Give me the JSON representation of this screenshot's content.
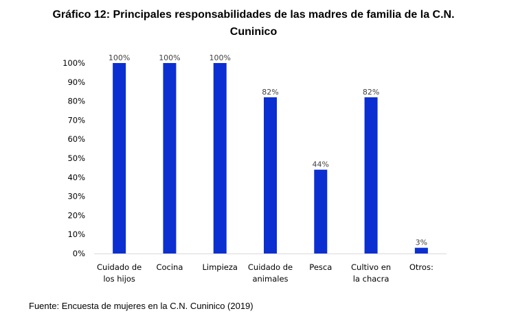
{
  "title_lines": [
    "Gráfico 12: Principales responsabilidades de las madres de familia de la C.N.",
    "Cuninico"
  ],
  "source": "Fuente: Encuesta de mujeres en la C.N. Cuninico (2019)",
  "chart_data": {
    "type": "bar",
    "title": "Gráfico 12: Principales responsabilidades de las madres de familia de la C.N. Cuninico",
    "categories": [
      [
        "Cuidado de",
        "los hijos"
      ],
      [
        "Cocina"
      ],
      [
        "Limpieza"
      ],
      [
        "Cuidado de",
        "animales"
      ],
      [
        "Pesca"
      ],
      [
        "Cultivo en",
        "la chacra"
      ],
      [
        "Otros:"
      ]
    ],
    "values": [
      100,
      100,
      100,
      82,
      44,
      82,
      3
    ],
    "data_labels": [
      "100%",
      "100%",
      "100%",
      "82%",
      "44%",
      "82%",
      "3%"
    ],
    "y_ticks": [
      0,
      10,
      20,
      30,
      40,
      50,
      60,
      70,
      80,
      90,
      100
    ],
    "y_tick_labels": [
      "0%",
      "10%",
      "20%",
      "30%",
      "40%",
      "50%",
      "60%",
      "70%",
      "80%",
      "90%",
      "100%"
    ],
    "ylim": [
      0,
      100
    ],
    "xlabel": "",
    "ylabel": "",
    "grid": false,
    "legend": "none",
    "bar_color": "#0b2fd1"
  }
}
